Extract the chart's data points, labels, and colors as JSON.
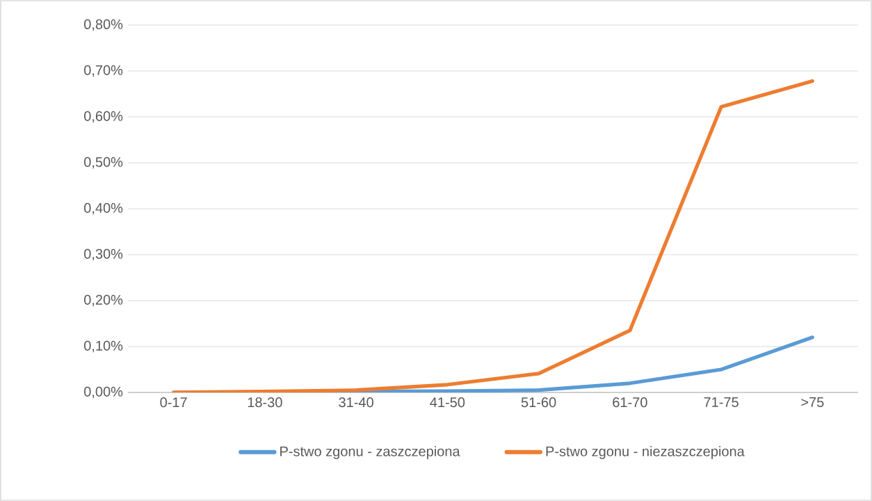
{
  "chart_data": {
    "type": "line",
    "categories": [
      "0-17",
      "18-30",
      "31-40",
      "41-50",
      "51-60",
      "61-70",
      "71-75",
      ">75"
    ],
    "series": [
      {
        "name": "P-stwo zgonu - zaszczepiona",
        "color": "#5b9bd5",
        "values": [
          0,
          0.001,
          0.002,
          0.003,
          0.005,
          0.02,
          0.05,
          0.12
        ]
      },
      {
        "name": "P-stwo zgonu - niezaszczepiona",
        "color": "#ed7d31",
        "values": [
          0,
          0.002,
          0.005,
          0.017,
          0.041,
          0.135,
          0.622,
          0.678
        ]
      }
    ],
    "ylim": [
      0,
      0.8
    ],
    "yticks": [
      {
        "value": 0,
        "label": "0,00%"
      },
      {
        "value": 0.1,
        "label": "0,10%"
      },
      {
        "value": 0.2,
        "label": "0,20%"
      },
      {
        "value": 0.3,
        "label": "0,30%"
      },
      {
        "value": 0.4,
        "label": "0,40%"
      },
      {
        "value": 0.5,
        "label": "0,50%"
      },
      {
        "value": 0.6,
        "label": "0,60%"
      },
      {
        "value": 0.7,
        "label": "0,70%"
      },
      {
        "value": 0.8,
        "label": "0,80%"
      }
    ],
    "grid": "y",
    "legend": "bottom",
    "marker": "none",
    "line_style": "solid"
  }
}
